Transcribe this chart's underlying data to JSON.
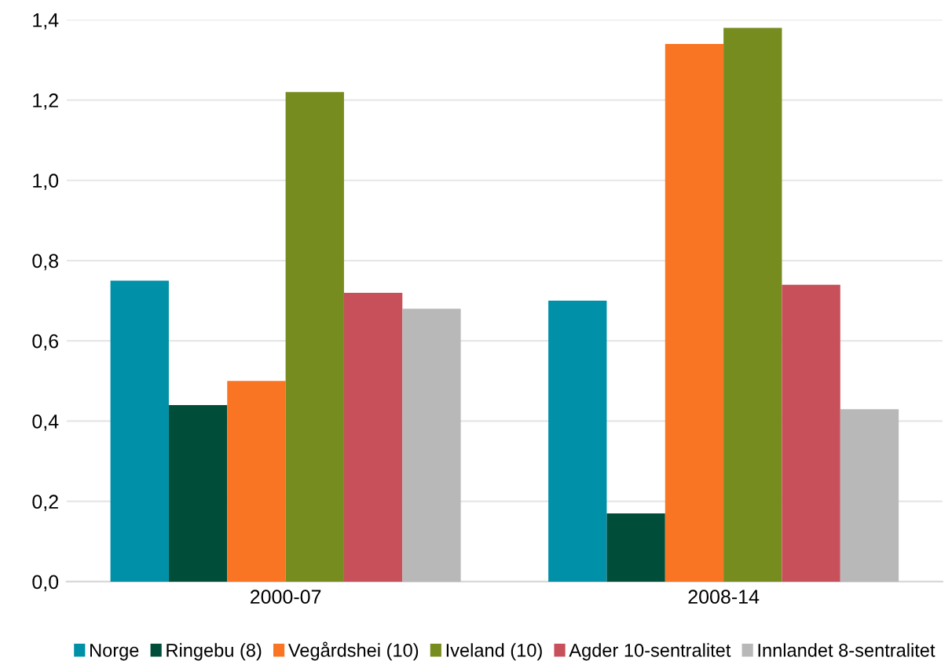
{
  "chart_data": {
    "type": "bar",
    "categories": [
      "2000-07",
      "2008-14"
    ],
    "series": [
      {
        "name": "Norge",
        "color": "#0090a8",
        "values": [
          0.75,
          0.7
        ]
      },
      {
        "name": "Ringebu (8)",
        "color": "#004d3a",
        "values": [
          0.44,
          0.17
        ]
      },
      {
        "name": "Vegårdshei (10)",
        "color": "#f97423",
        "values": [
          0.5,
          1.34
        ]
      },
      {
        "name": "Iveland (10)",
        "color": "#778c1f",
        "values": [
          1.22,
          1.38
        ]
      },
      {
        "name": "Agder 10-sentralitet",
        "color": "#c8505a",
        "values": [
          0.72,
          0.74
        ]
      },
      {
        "name": "Innlandet 8-sentralitet",
        "color": "#b8b8b8",
        "values": [
          0.68,
          0.43
        ]
      }
    ],
    "ylim": [
      0,
      1.4
    ],
    "yticks": [
      {
        "value": 0,
        "label": "0,0"
      },
      {
        "value": 0.2,
        "label": "0,2"
      },
      {
        "value": 0.4,
        "label": "0,4"
      },
      {
        "value": 0.6,
        "label": "0,6"
      },
      {
        "value": 0.8,
        "label": "0,8"
      },
      {
        "value": 1.0,
        "label": "1,0"
      },
      {
        "value": 1.2,
        "label": "1,2"
      },
      {
        "value": 1.4,
        "label": "1,4"
      }
    ],
    "grid": "y",
    "legend": "bottom"
  }
}
